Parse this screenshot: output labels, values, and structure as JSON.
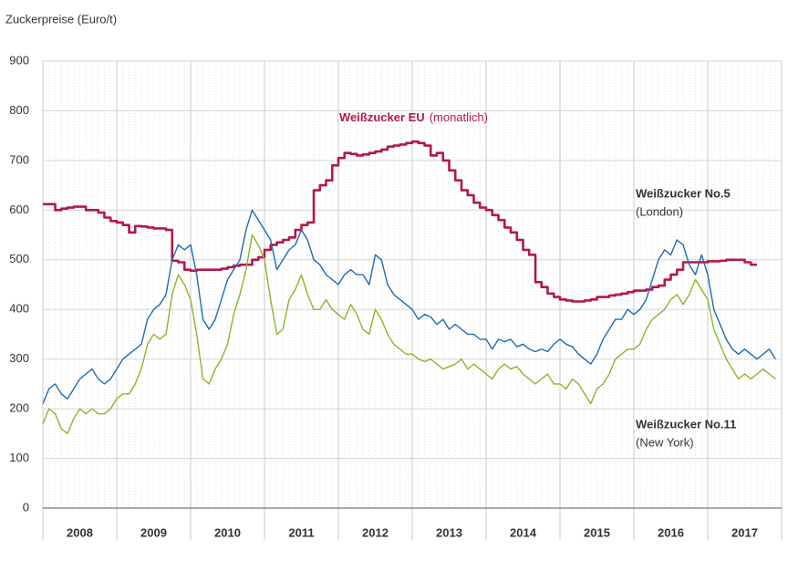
{
  "chart_data": {
    "type": "line",
    "title": "Zuckerpreise (Euro/t)",
    "xlim": [
      2008,
      2018
    ],
    "xticks": [
      {
        "value": 2008.5,
        "label": "2008"
      },
      {
        "value": 2009.5,
        "label": "2009"
      },
      {
        "value": 2010.5,
        "label": "2010"
      },
      {
        "value": 2011.5,
        "label": "2011"
      },
      {
        "value": 2012.5,
        "label": "2012"
      },
      {
        "value": 2013.5,
        "label": "2013"
      },
      {
        "value": 2014.5,
        "label": "2014"
      },
      {
        "value": 2015.5,
        "label": "2015"
      },
      {
        "value": 2016.5,
        "label": "2016"
      },
      {
        "value": 2017.5,
        "label": "2017"
      }
    ],
    "ylim": [
      0,
      900
    ],
    "yticks": [
      0,
      100,
      200,
      300,
      400,
      500,
      600,
      700,
      800,
      900
    ],
    "grid": true,
    "x": [
      2008,
      2008.083,
      2008.167,
      2008.25,
      2008.333,
      2008.417,
      2008.5,
      2008.583,
      2008.667,
      2008.75,
      2008.833,
      2008.917,
      2009,
      2009.083,
      2009.167,
      2009.25,
      2009.333,
      2009.417,
      2009.5,
      2009.583,
      2009.667,
      2009.75,
      2009.833,
      2009.917,
      2010,
      2010.083,
      2010.167,
      2010.25,
      2010.333,
      2010.417,
      2010.5,
      2010.583,
      2010.667,
      2010.75,
      2010.833,
      2010.917,
      2011,
      2011.083,
      2011.167,
      2011.25,
      2011.333,
      2011.417,
      2011.5,
      2011.583,
      2011.667,
      2011.75,
      2011.833,
      2011.917,
      2012,
      2012.083,
      2012.167,
      2012.25,
      2012.333,
      2012.417,
      2012.5,
      2012.583,
      2012.667,
      2012.75,
      2012.833,
      2012.917,
      2013,
      2013.083,
      2013.167,
      2013.25,
      2013.333,
      2013.417,
      2013.5,
      2013.583,
      2013.667,
      2013.75,
      2013.833,
      2013.917,
      2014,
      2014.083,
      2014.167,
      2014.25,
      2014.333,
      2014.417,
      2014.5,
      2014.583,
      2014.667,
      2014.75,
      2014.833,
      2014.917,
      2015,
      2015.083,
      2015.167,
      2015.25,
      2015.333,
      2015.417,
      2015.5,
      2015.583,
      2015.667,
      2015.75,
      2015.833,
      2015.917,
      2016,
      2016.083,
      2016.167,
      2016.25,
      2016.333,
      2016.417,
      2016.5,
      2016.583,
      2016.667,
      2016.75,
      2016.833,
      2016.917,
      2017,
      2017.083,
      2017.167,
      2017.25,
      2017.333,
      2017.417,
      2017.5,
      2017.583,
      2017.667,
      2017.75,
      2017.833,
      2017.917
    ],
    "series": [
      {
        "name": "Weißzucker EU",
        "note": "(monatlich)",
        "color": "#b5174b",
        "step": true,
        "values": [
          612,
          612,
          600,
          603,
          605,
          607,
          607,
          600,
          600,
          595,
          585,
          578,
          575,
          570,
          555,
          568,
          567,
          565,
          563,
          563,
          560,
          498,
          495,
          480,
          478,
          480,
          480,
          480,
          480,
          482,
          485,
          488,
          490,
          490,
          500,
          505,
          520,
          530,
          535,
          540,
          545,
          560,
          570,
          575,
          640,
          650,
          660,
          690,
          705,
          715,
          713,
          710,
          712,
          715,
          718,
          722,
          728,
          730,
          732,
          735,
          738,
          735,
          730,
          710,
          715,
          700,
          680,
          660,
          640,
          630,
          615,
          605,
          600,
          590,
          580,
          565,
          555,
          540,
          520,
          510,
          455,
          445,
          432,
          425,
          420,
          418,
          416,
          416,
          418,
          420,
          425,
          425,
          428,
          430,
          432,
          435,
          438,
          438,
          440,
          445,
          448,
          460,
          470,
          480,
          495,
          495,
          495,
          495,
          497,
          497,
          498,
          500,
          500,
          500,
          495,
          490,
          490,
          null,
          null,
          null
        ]
      },
      {
        "name": "Weißzucker No.5",
        "note": "(London)",
        "color": "#1f6bb0",
        "values": [
          210,
          240,
          250,
          230,
          220,
          240,
          260,
          270,
          280,
          260,
          250,
          260,
          280,
          300,
          310,
          320,
          330,
          380,
          400,
          410,
          430,
          500,
          530,
          520,
          530,
          470,
          380,
          360,
          380,
          420,
          460,
          480,
          500,
          560,
          600,
          580,
          560,
          540,
          480,
          500,
          520,
          530,
          560,
          540,
          500,
          490,
          470,
          460,
          450,
          470,
          480,
          470,
          470,
          450,
          510,
          500,
          450,
          430,
          420,
          410,
          400,
          380,
          390,
          385,
          370,
          380,
          360,
          370,
          360,
          350,
          350,
          340,
          340,
          320,
          340,
          335,
          340,
          325,
          330,
          320,
          315,
          320,
          315,
          330,
          340,
          330,
          325,
          310,
          300,
          290,
          310,
          340,
          360,
          380,
          380,
          400,
          390,
          400,
          420,
          460,
          500,
          520,
          510,
          540,
          530,
          490,
          470,
          510,
          470,
          400,
          370,
          340,
          320,
          310,
          320,
          310,
          300,
          310,
          320,
          300
        ]
      },
      {
        "name": "Weißzucker No.11",
        "note": "(New York)",
        "color": "#8db42b",
        "values": [
          170,
          200,
          190,
          160,
          150,
          180,
          200,
          190,
          200,
          190,
          190,
          200,
          220,
          230,
          230,
          250,
          280,
          330,
          350,
          340,
          350,
          430,
          470,
          450,
          420,
          350,
          260,
          250,
          280,
          300,
          330,
          390,
          430,
          480,
          550,
          530,
          500,
          420,
          350,
          360,
          420,
          440,
          470,
          430,
          400,
          400,
          420,
          400,
          390,
          380,
          410,
          390,
          360,
          350,
          400,
          380,
          350,
          330,
          320,
          310,
          310,
          300,
          295,
          300,
          290,
          280,
          285,
          290,
          300,
          280,
          290,
          280,
          270,
          260,
          280,
          290,
          280,
          285,
          270,
          260,
          250,
          260,
          270,
          250,
          250,
          240,
          260,
          250,
          230,
          210,
          240,
          250,
          270,
          300,
          310,
          320,
          320,
          330,
          360,
          380,
          390,
          400,
          420,
          430,
          410,
          430,
          460,
          440,
          420,
          360,
          330,
          300,
          280,
          260,
          270,
          260,
          270,
          280,
          270,
          260
        ]
      }
    ]
  }
}
